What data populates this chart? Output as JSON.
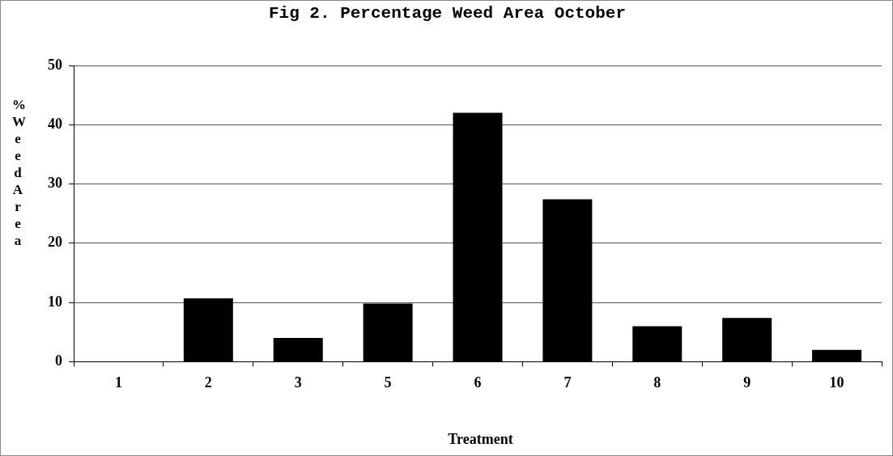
{
  "chart_data": {
    "type": "bar",
    "title": "Fig 2. Percentage Weed Area October",
    "xlabel": "Treatment",
    "ylabel": "% Weed Area",
    "categories": [
      "1",
      "2",
      "3",
      "5",
      "6",
      "7",
      "8",
      "9",
      "10"
    ],
    "values": [
      0,
      10.7,
      4,
      9.8,
      42,
      27.4,
      6,
      7.4,
      2
    ],
    "color": "#000000",
    "ylim": [
      0,
      50
    ],
    "yticks": [
      0,
      10,
      20,
      30,
      40,
      50
    ],
    "grid": "y",
    "legend": false
  }
}
